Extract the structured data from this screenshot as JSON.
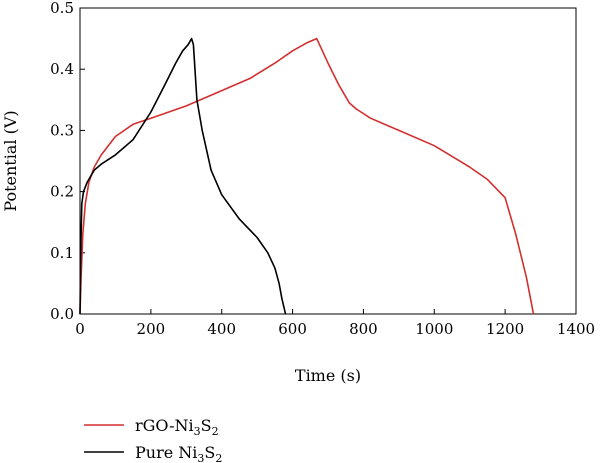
{
  "chart_data": {
    "type": "line",
    "xlabel": "Time (s)",
    "ylabel": "Potential (V)",
    "xlim": [
      0,
      1400
    ],
    "ylim": [
      0,
      0.5
    ],
    "xticks": [
      0,
      200,
      400,
      600,
      800,
      1000,
      1200,
      1400
    ],
    "yticks": [
      0.0,
      0.1,
      0.2,
      0.3,
      0.4,
      0.5
    ],
    "xtick_labels": [
      "0",
      "200",
      "400",
      "600",
      "800",
      "1000",
      "1200",
      "1400"
    ],
    "ytick_labels": [
      "0.0",
      "0.1",
      "0.2",
      "0.3",
      "0.4",
      "0.5"
    ],
    "grid": false,
    "legend_position": "bottom-left, below plot",
    "series": [
      {
        "name": "rGO-Ni3S2",
        "name_base": "rGO-Ni",
        "name_sub1": "3",
        "name_mid": "S",
        "name_sub2": "2",
        "color": "#d32f2f",
        "x": [
          0,
          3,
          8,
          15,
          25,
          40,
          60,
          100,
          150,
          200,
          300,
          400,
          480,
          550,
          600,
          640,
          668,
          700,
          730,
          750,
          760,
          780,
          820,
          900,
          1000,
          1100,
          1150,
          1200,
          1230,
          1260,
          1280
        ],
        "y": [
          0,
          0.06,
          0.13,
          0.18,
          0.215,
          0.24,
          0.26,
          0.29,
          0.31,
          0.32,
          0.34,
          0.365,
          0.385,
          0.41,
          0.43,
          0.443,
          0.45,
          0.41,
          0.375,
          0.355,
          0.345,
          0.335,
          0.32,
          0.3,
          0.275,
          0.24,
          0.22,
          0.19,
          0.13,
          0.06,
          0
        ]
      },
      {
        "name": "Pure Ni3S2",
        "name_base": "Pure Ni",
        "name_sub1": "3",
        "name_mid": "S",
        "name_sub2": "2",
        "color": "#000000",
        "x": [
          0,
          2,
          5,
          10,
          20,
          40,
          60,
          100,
          150,
          200,
          240,
          270,
          290,
          305,
          315,
          320,
          330,
          345,
          370,
          400,
          450,
          500,
          530,
          550,
          562,
          570,
          576,
          580
        ],
        "y": [
          0,
          0.1,
          0.18,
          0.2,
          0.215,
          0.235,
          0.245,
          0.26,
          0.285,
          0.33,
          0.375,
          0.41,
          0.43,
          0.44,
          0.45,
          0.44,
          0.35,
          0.3,
          0.235,
          0.195,
          0.155,
          0.125,
          0.1,
          0.075,
          0.05,
          0.025,
          0.01,
          0
        ]
      }
    ]
  }
}
